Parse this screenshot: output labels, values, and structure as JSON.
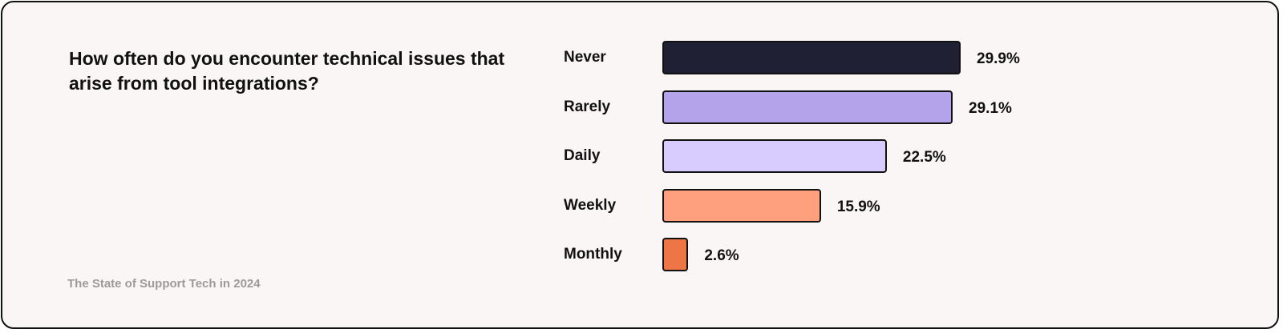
{
  "source": "The State of Support Tech in 2024",
  "chart_data": {
    "type": "bar",
    "orientation": "horizontal",
    "title": "How often do you encounter technical issues that arise from tool integrations?",
    "xlim": [
      0,
      29.9
    ],
    "grid": false,
    "categories": [
      "Never",
      "Rarely",
      "Daily",
      "Weekly",
      "Monthly"
    ],
    "values": [
      29.9,
      29.1,
      22.5,
      15.9,
      2.6
    ],
    "value_labels": [
      "29.9%",
      "29.1%",
      "22.5%",
      "15.9%",
      "2.6%"
    ],
    "colors": [
      "#1f2033",
      "#b4a3ea",
      "#d7ccfd",
      "#fea07e",
      "#ee7646"
    ]
  }
}
